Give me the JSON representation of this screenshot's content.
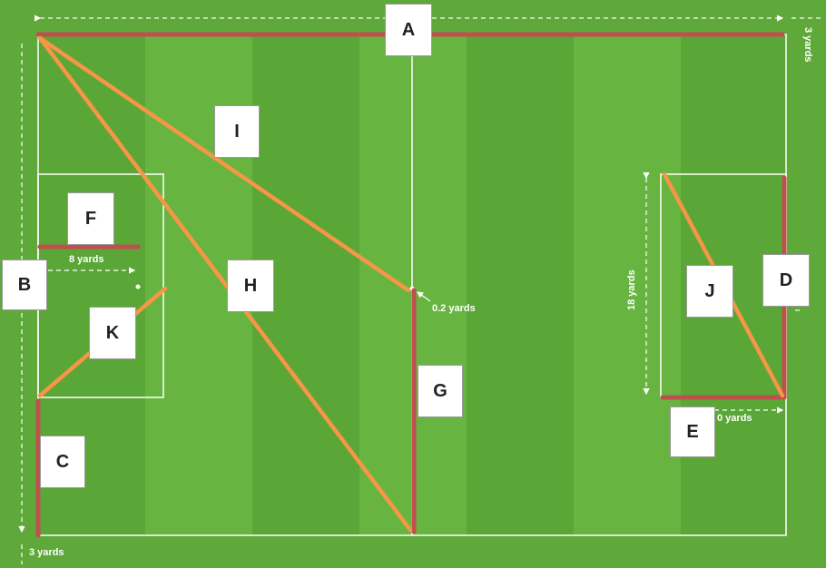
{
  "colors": {
    "grass_dark": "#5aa637",
    "grass_light": "#67b540",
    "border_grass": "#5fa83a",
    "pitch_line": "#ffffff",
    "red_line": "#c0504d",
    "orange_line": "#f79646"
  },
  "labels": {
    "a": "A",
    "b": "B",
    "c": "C",
    "d": "D",
    "e": "E",
    "f": "F",
    "g": "G",
    "h": "H",
    "i": "I",
    "j": "J",
    "k": "K"
  },
  "measurements": {
    "top_right": "3 yards",
    "bottom_left": "3 yards",
    "box_width": "8 yards",
    "spot_offset": "0.2 yards",
    "box_height": "18 yards",
    "box_depth_partial": "0 yards"
  }
}
